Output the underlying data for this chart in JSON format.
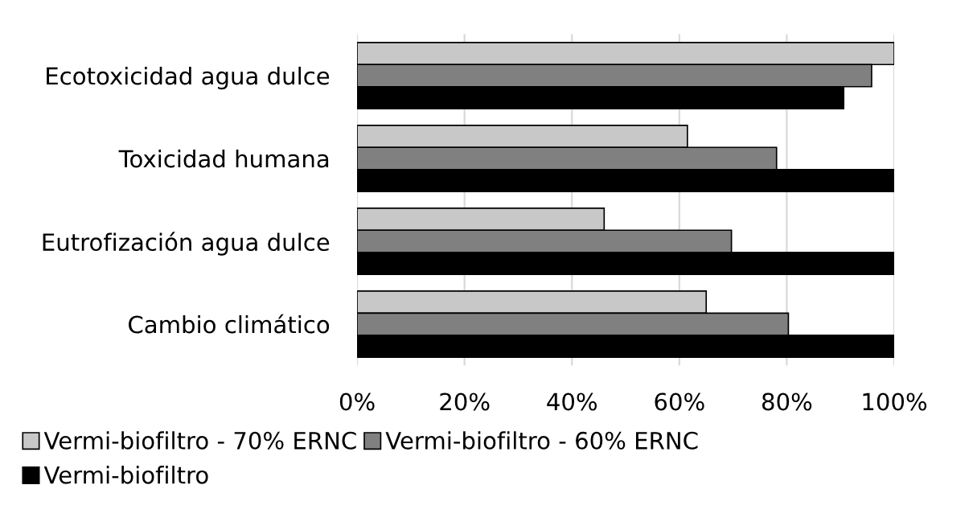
{
  "chart_data": {
    "type": "bar",
    "orientation": "horizontal",
    "categories": [
      "Ecotoxicidad agua dulce",
      "Toxicidad humana",
      "Eutrofización agua dulce",
      "Cambio climático"
    ],
    "series": [
      {
        "name": "Vermi-biofiltro - 70% ERNC",
        "color": "#c8c8c8",
        "values": [
          100,
          61.5,
          46,
          65
        ]
      },
      {
        "name": "Vermi-biofiltro - 60% ERNC",
        "color": "#808080",
        "values": [
          95.8,
          78.1,
          69.7,
          80.3
        ]
      },
      {
        "name": "Vermi-biofiltro",
        "color": "#000000",
        "values": [
          90.6,
          100,
          100,
          100
        ]
      }
    ],
    "xlim": [
      0,
      100
    ],
    "xticks": [
      {
        "value": 0,
        "label": "0%"
      },
      {
        "value": 20,
        "label": "20%"
      },
      {
        "value": 40,
        "label": "40%"
      },
      {
        "value": 60,
        "label": "60%"
      },
      {
        "value": 80,
        "label": "80%"
      },
      {
        "value": 100,
        "label": "100%"
      }
    ],
    "grid": "x",
    "legend": "bottom"
  }
}
